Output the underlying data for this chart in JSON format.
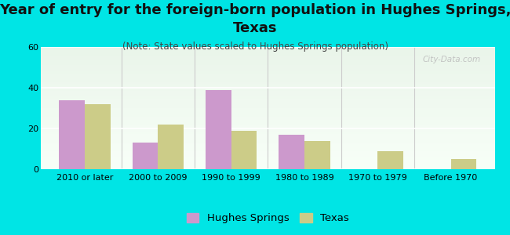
{
  "title": "Year of entry for the foreign-born population in Hughes Springs,\nTexas",
  "subtitle": "(Note: State values scaled to Hughes Springs population)",
  "categories": [
    "2010 or later",
    "2000 to 2009",
    "1990 to 1999",
    "1980 to 1989",
    "1970 to 1979",
    "Before 1970"
  ],
  "hughes_springs": [
    34,
    13,
    39,
    17,
    0,
    0
  ],
  "texas": [
    32,
    22,
    19,
    14,
    9,
    5
  ],
  "hughes_color": "#cc99cc",
  "texas_color": "#cccc88",
  "background_color": "#00e5e5",
  "ylim": [
    0,
    60
  ],
  "yticks": [
    0,
    20,
    40,
    60
  ],
  "bar_width": 0.35,
  "title_fontsize": 13,
  "subtitle_fontsize": 8.5,
  "tick_fontsize": 8,
  "legend_fontsize": 9.5
}
